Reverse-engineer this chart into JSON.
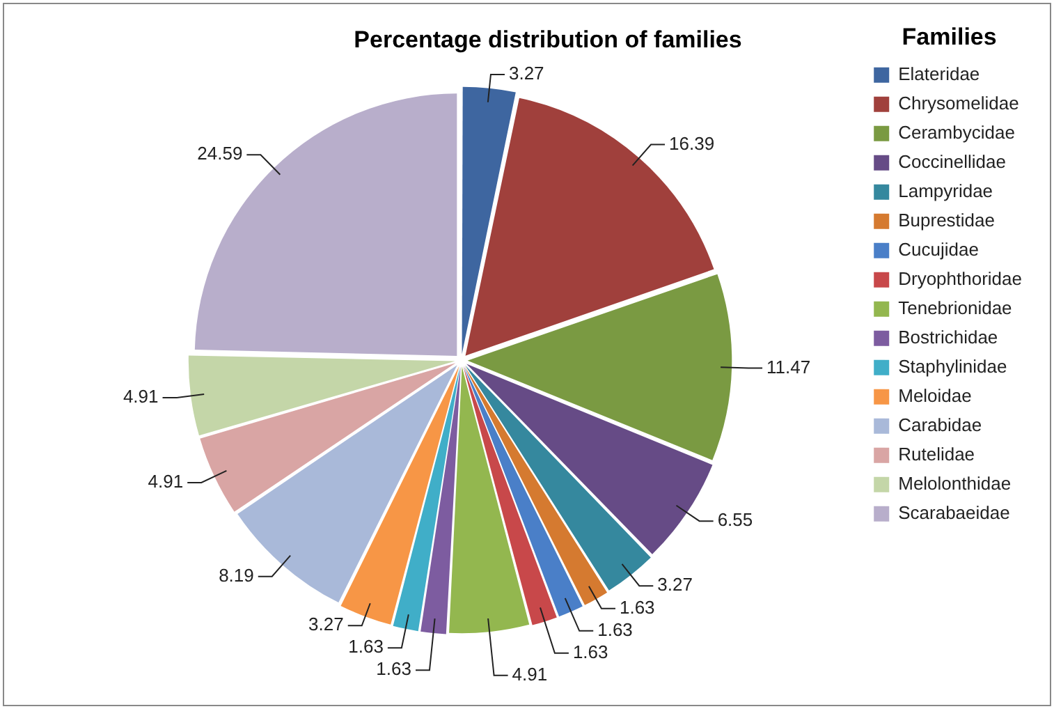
{
  "chart_data": {
    "type": "pie",
    "title": "Percentage distribution of families",
    "legend_title": "Families",
    "legend": "right",
    "data_labels": true,
    "categories": [
      "Elateridae",
      "Chrysomelidae",
      "Cerambycidae",
      "Coccinellidae",
      "Lampyridae",
      "Buprestidae",
      "Cucujidae",
      "Dryophthoridae",
      "Tenebrionidae",
      "Bostrichidae",
      "Staphylinidae",
      "Meloidae",
      "Carabidae",
      "Rutelidae",
      "Melolonthidae",
      "Scarabaeidae"
    ],
    "values": [
      3.27,
      16.39,
      11.47,
      6.55,
      3.27,
      1.63,
      1.63,
      1.63,
      4.91,
      1.63,
      1.63,
      3.27,
      8.19,
      4.91,
      4.91,
      24.59
    ],
    "colors": [
      "#3e66a0",
      "#a0403c",
      "#7a9a42",
      "#664b86",
      "#35889e",
      "#d57a30",
      "#4a7fc8",
      "#c8484a",
      "#93b74f",
      "#7d5ca0",
      "#40aec8",
      "#f79646",
      "#a9b9d9",
      "#d9a5a4",
      "#c4d6a8",
      "#b8aecb"
    ]
  }
}
